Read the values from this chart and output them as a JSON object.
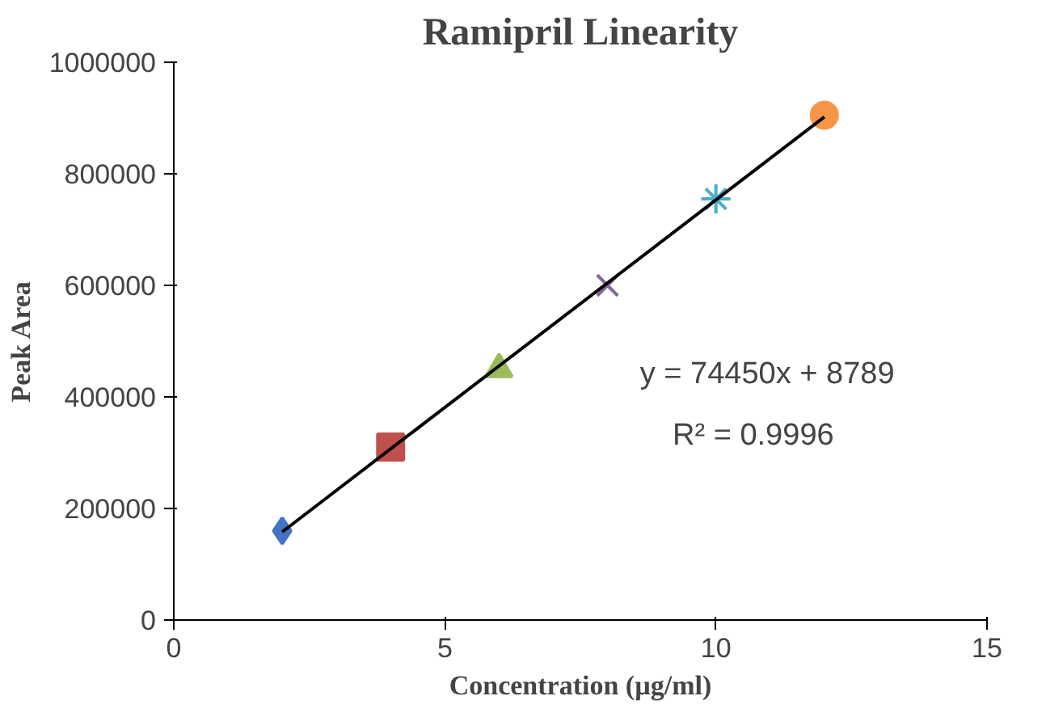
{
  "chart_data": {
    "type": "scatter",
    "title": "Ramipril Linearity",
    "xlabel": "Concentration (µg/ml)",
    "ylabel": "Peak Area",
    "xlim": [
      0,
      15
    ],
    "xticks": [
      0,
      5,
      10,
      15
    ],
    "ylim": [
      0,
      1000000
    ],
    "yticks": [
      0,
      200000,
      400000,
      600000,
      800000,
      1000000
    ],
    "grid": false,
    "series": [
      {
        "x": [
          2,
          4,
          6,
          8,
          10,
          12
        ],
        "values": [
          160000,
          310000,
          450000,
          600000,
          755000,
          905000
        ],
        "colors": [
          "#4472c4",
          "#c0504d",
          "#9bbb59",
          "#8064a2",
          "#4bacc6",
          "#f79646"
        ],
        "marker": [
          "diamond",
          "square",
          "triangle",
          "x",
          "asterisk",
          "circle"
        ]
      },
      {
        "type": "line",
        "x": [
          2,
          12
        ],
        "values": [
          158000,
          902000
        ],
        "color": "#000000",
        "marker": "none"
      }
    ],
    "annotations": [
      "y = 74450x + 8789",
      "R² = 0.9996"
    ]
  }
}
